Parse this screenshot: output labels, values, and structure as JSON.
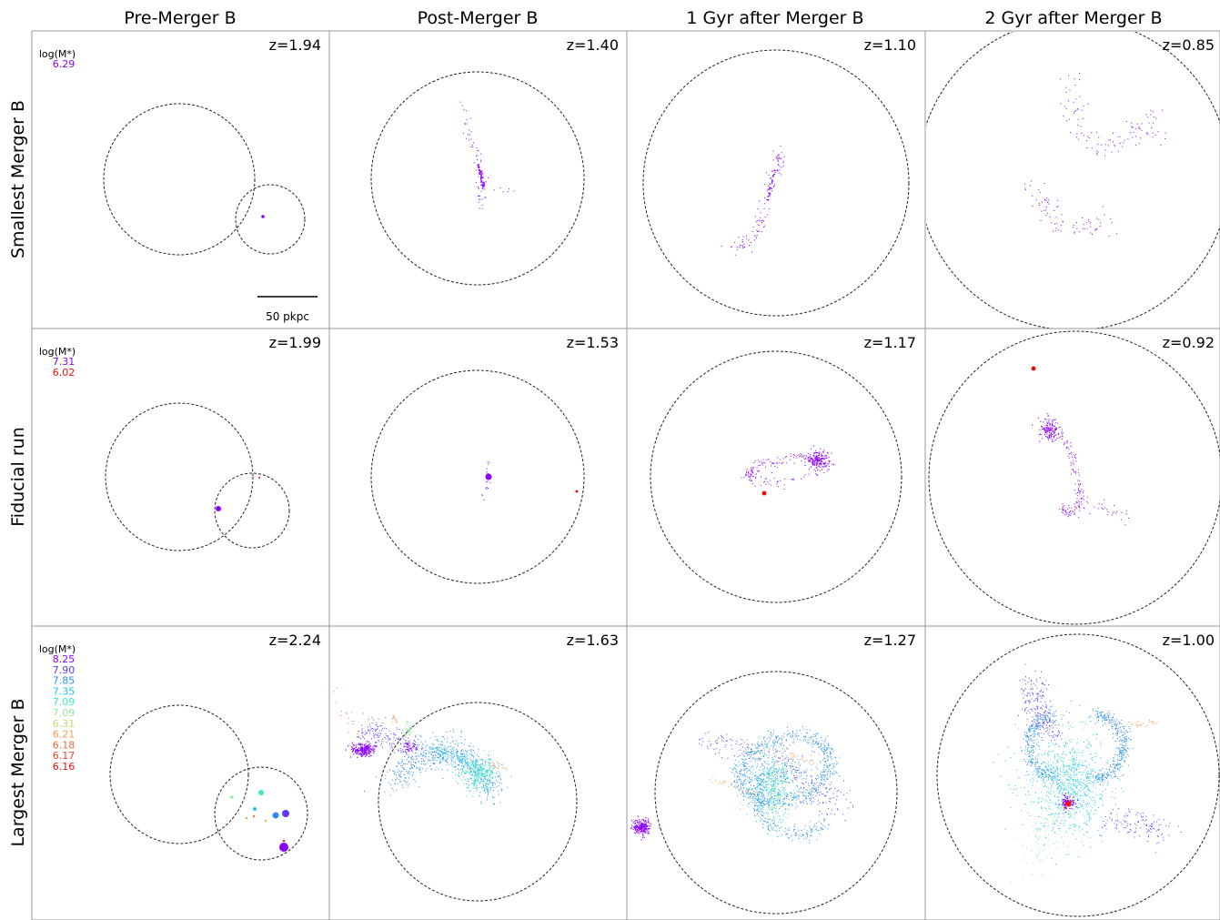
{
  "columns": [
    "Pre-Merger B",
    "Post-Merger B",
    "1 Gyr after Merger B",
    "2 Gyr after Merger B"
  ],
  "rows": [
    "Smallest Merger B",
    "Fiducial run",
    "Largest Merger B"
  ],
  "scale_bar": "50 pkpc",
  "colors": [
    "#8b00ff",
    "#5a3cf0",
    "#2a8ee6",
    "#1fc4ea",
    "#3de8c8",
    "#8ef0a0",
    "#c8d870",
    "#f2a050",
    "#f56a3a",
    "#ee1010"
  ],
  "chart_data": [
    {
      "type": "scatter",
      "row": "Smallest Merger B",
      "legend_title": "log(M*)",
      "legend": [
        {
          "value": "6.29",
          "color": "#8b00ff"
        }
      ],
      "panels": [
        {
          "z": "z=1.94"
        },
        {
          "z": "z=1.40"
        },
        {
          "z": "z=1.10"
        },
        {
          "z": "z=0.85"
        }
      ]
    },
    {
      "type": "scatter",
      "row": "Fiducial run",
      "legend_title": "log(M*)",
      "legend": [
        {
          "value": "7.31",
          "color": "#8b00ff"
        },
        {
          "value": "6.02",
          "color": "#ee1010"
        }
      ],
      "panels": [
        {
          "z": "z=1.99"
        },
        {
          "z": "z=1.53"
        },
        {
          "z": "z=1.17"
        },
        {
          "z": "z=0.92"
        }
      ]
    },
    {
      "type": "scatter",
      "row": "Largest Merger B",
      "legend_title": "log(M*)",
      "legend": [
        {
          "value": "8.25",
          "color": "#8b00ff"
        },
        {
          "value": "7.90",
          "color": "#5a3cf0"
        },
        {
          "value": "7.85",
          "color": "#2a8ee6"
        },
        {
          "value": "7.35",
          "color": "#1fc4ea"
        },
        {
          "value": "7.09",
          "color": "#3de8c8"
        },
        {
          "value": "7.09",
          "color": "#8ef0a0"
        },
        {
          "value": "6.31",
          "color": "#c8d870"
        },
        {
          "value": "6.21",
          "color": "#f2a050"
        },
        {
          "value": "6.18",
          "color": "#f56a3a"
        },
        {
          "value": "6.17",
          "color": "#f04420"
        },
        {
          "value": "6.16",
          "color": "#ee1010"
        }
      ],
      "panels": [
        {
          "z": "z=2.24"
        },
        {
          "z": "z=1.63"
        },
        {
          "z": "z=1.27"
        },
        {
          "z": "z=1.00"
        }
      ]
    }
  ]
}
